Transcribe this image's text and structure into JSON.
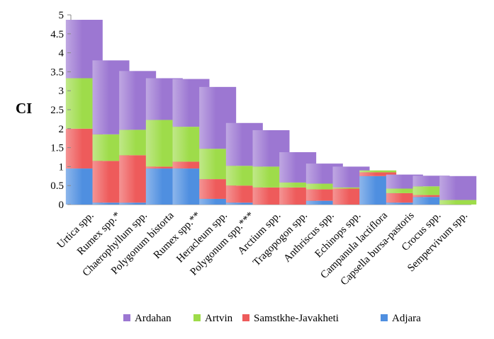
{
  "chart_data": {
    "type": "bar",
    "stacked": true,
    "title": "",
    "xlabel": "",
    "ylabel": "CI",
    "ylim": [
      0,
      5
    ],
    "yticks": [
      "0",
      "0.5",
      "1",
      "1.5",
      "2",
      "2.5",
      "3",
      "3.5",
      "4",
      "4.5",
      "5"
    ],
    "grid": false,
    "legend_position": "bottom",
    "categories": [
      "Urtica spp.",
      "Rumex spp.*",
      "Chaerophyllum spp.",
      "Polygonum bistorta",
      "Rumex spp.**",
      "Heracleum spp.",
      "Polygonum spp.***",
      "Arctium spp.",
      "Tragopogon spp.",
      "Anthriscus spp.",
      "Echinops spp.",
      "Campanula lactiflora",
      "Capsella bursa-pastoris",
      "Crocus spp.",
      "Sempervivum spp."
    ],
    "series": [
      {
        "name": "Adjara",
        "color": "#4f8fe0",
        "values": [
          0.95,
          0.05,
          0.05,
          0.95,
          0.95,
          0.15,
          0.05,
          0.0,
          0.0,
          0.1,
          0.0,
          0.75,
          0.05,
          0.2,
          0.0
        ]
      },
      {
        "name": "Samstkhe-Javakheti",
        "color": "#ee5b5b",
        "values": [
          1.05,
          1.1,
          1.25,
          0.05,
          0.18,
          0.52,
          0.45,
          0.45,
          0.45,
          0.3,
          0.42,
          0.1,
          0.25,
          0.05,
          0.0
        ]
      },
      {
        "name": "Artvin",
        "color": "#9edc4a",
        "values": [
          1.33,
          0.7,
          0.67,
          1.23,
          0.92,
          0.8,
          0.52,
          0.55,
          0.13,
          0.15,
          0.03,
          0.05,
          0.12,
          0.23,
          0.12
        ]
      },
      {
        "name": "Ardahan",
        "color": "#9c77d2",
        "values": [
          1.54,
          1.95,
          1.55,
          1.1,
          1.26,
          1.63,
          1.13,
          0.96,
          0.8,
          0.53,
          0.55,
          0.0,
          0.37,
          0.28,
          0.63
        ]
      }
    ],
    "legend_order": [
      "Ardahan",
      "Artvin",
      "Samstkhe-Javakheti",
      "Adjara"
    ]
  }
}
